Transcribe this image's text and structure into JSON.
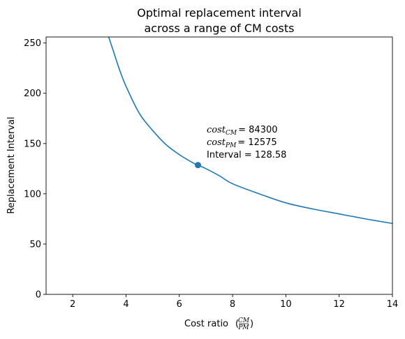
{
  "chart_data": {
    "type": "line",
    "title_line1": "Optimal replacement interval",
    "title_line2": "across a range of CM costs",
    "xlabel": "Cost ratio",
    "xlabel_frac_num": "CM",
    "xlabel_frac_den": "PM",
    "ylabel": "Replacement Interval",
    "xlim": [
      1,
      14
    ],
    "ylim": [
      0,
      256
    ],
    "x_ticks": [
      "2",
      "4",
      "6",
      "8",
      "10",
      "12",
      "14"
    ],
    "y_ticks": [
      "0",
      "50",
      "100",
      "150",
      "200",
      "250"
    ],
    "series": [
      {
        "color": "#1f77b4",
        "x": [
          3.35,
          3.5,
          3.75,
          4.0,
          4.5,
          5.0,
          5.5,
          6.0,
          6.5,
          6.7,
          7.0,
          7.5,
          8.0,
          9.0,
          10.0,
          11.0,
          12.0,
          13.0,
          14.0
        ],
        "y": [
          256,
          244,
          224,
          207,
          180,
          163,
          149,
          139,
          131,
          128.58,
          125,
          118,
          110,
          100,
          91,
          85,
          80,
          75,
          70.5
        ]
      }
    ],
    "highlight_point": {
      "x": 6.7,
      "y": 128.58,
      "color": "#1f77b4"
    },
    "annotation": {
      "cm_var": "cost",
      "cm_sub": "CM",
      "cm_value": "= 84300",
      "pm_var": "cost",
      "pm_sub": "PM",
      "pm_value": "= 12575",
      "interval_text": "Interval = 128.58"
    }
  }
}
